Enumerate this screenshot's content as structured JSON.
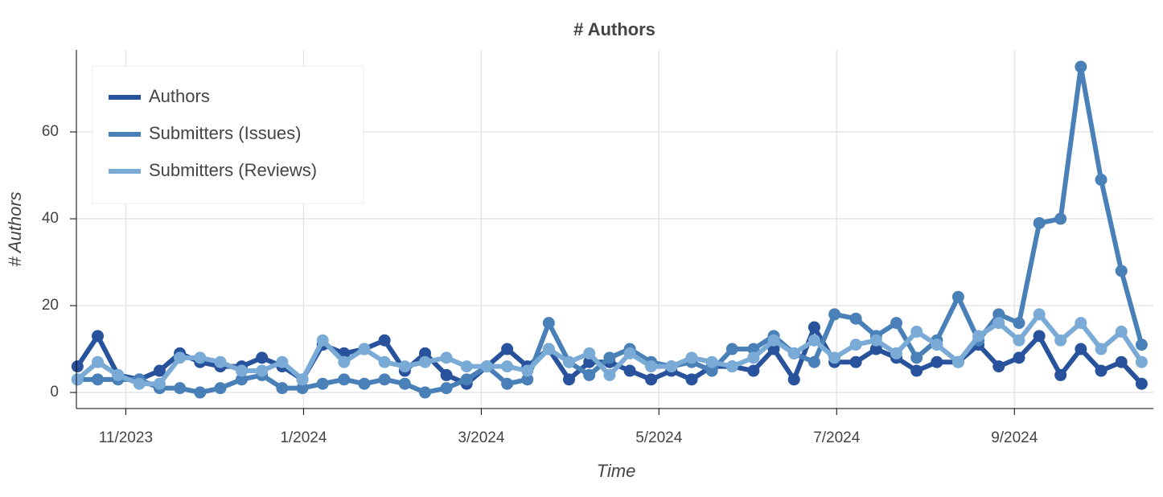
{
  "chart_data": {
    "type": "line",
    "title": "# Authors",
    "x_label": "Time",
    "y_label": "# Authors",
    "x": [
      2023.788,
      2023.807,
      2023.826,
      2023.846,
      2023.865,
      2023.884,
      2023.903,
      2023.922,
      2023.942,
      2023.961,
      2023.98,
      2023.999,
      2024.018,
      2024.038,
      2024.057,
      2024.076,
      2024.095,
      2024.114,
      2024.134,
      2024.153,
      2024.172,
      2024.191,
      2024.21,
      2024.23,
      2024.249,
      2024.268,
      2024.287,
      2024.306,
      2024.326,
      2024.345,
      2024.364,
      2024.383,
      2024.402,
      2024.422,
      2024.441,
      2024.46,
      2024.479,
      2024.498,
      2024.518,
      2024.537,
      2024.556,
      2024.575,
      2024.594,
      2024.614,
      2024.633,
      2024.652,
      2024.671,
      2024.69,
      2024.71,
      2024.729,
      2024.748,
      2024.767,
      2024.786
    ],
    "series": [
      {
        "name": "Authors",
        "color": "#28539c",
        "values": [
          6,
          13,
          4,
          3,
          5,
          9,
          7,
          6,
          6,
          8,
          6,
          3,
          11,
          9,
          10,
          12,
          5,
          9,
          4,
          2,
          6,
          10,
          6,
          10,
          3,
          7,
          7,
          5,
          3,
          5,
          3,
          6,
          6,
          5,
          10,
          3,
          15,
          7,
          7,
          10,
          8,
          5,
          7,
          7,
          11,
          6,
          8,
          13,
          4,
          10,
          5,
          7,
          2
        ]
      },
      {
        "name": "Submitters (Issues)",
        "color": "#4a80b8",
        "values": [
          3,
          3,
          3,
          3,
          1,
          1,
          0,
          1,
          3,
          4,
          1,
          1,
          2,
          3,
          2,
          3,
          2,
          0,
          1,
          3,
          6,
          2,
          3,
          16,
          7,
          4,
          8,
          10,
          7,
          6,
          7,
          5,
          10,
          10,
          13,
          9,
          7,
          18,
          17,
          13,
          16,
          8,
          12,
          22,
          12,
          18,
          16,
          39,
          40,
          75,
          49,
          28,
          11
        ]
      },
      {
        "name": "Submitters (Reviews)",
        "color": "#7aaad6",
        "values": [
          3,
          7,
          4,
          2,
          2,
          8,
          8,
          7,
          5,
          5,
          7,
          3,
          12,
          7,
          10,
          7,
          6,
          7,
          8,
          6,
          6,
          6,
          5,
          10,
          7,
          9,
          4,
          9,
          6,
          6,
          8,
          7,
          6,
          8,
          12,
          9,
          12,
          8,
          11,
          12,
          9,
          14,
          11,
          7,
          13,
          16,
          12,
          18,
          12,
          16,
          10,
          14,
          7
        ]
      }
    ],
    "xlim": [
      2023.787,
      2024.797
    ],
    "xticks": [
      {
        "value": 2023.8333,
        "label": "11/2023"
      },
      {
        "value": 2024.0,
        "label": "1/2024"
      },
      {
        "value": 2024.1667,
        "label": "3/2024"
      },
      {
        "value": 2024.3333,
        "label": "5/2024"
      },
      {
        "value": 2024.5,
        "label": "7/2024"
      },
      {
        "value": 2024.6667,
        "label": "9/2024"
      }
    ],
    "ylim": [
      -3.7,
      78.9
    ],
    "yticks": [
      0,
      20,
      40,
      60
    ],
    "grid": true,
    "legend": "top-left"
  }
}
